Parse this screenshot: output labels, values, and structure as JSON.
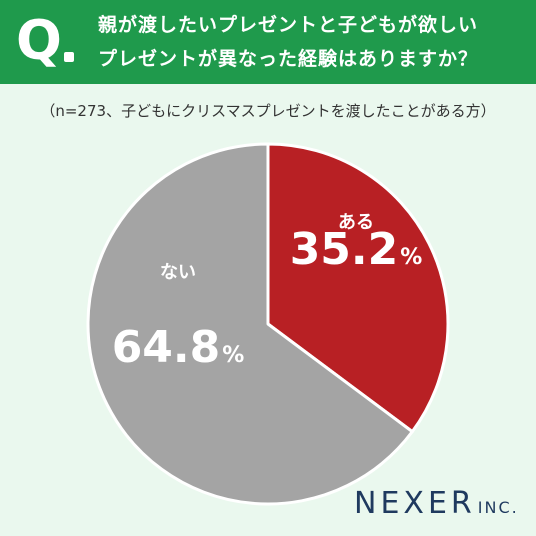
{
  "header": {
    "q_letter": "Q",
    "question_line1": "親が渡したいプレゼントと子どもが欲しい",
    "question_line2": "プレゼントが異なった経験はありますか？"
  },
  "note": "（n=273、子どもにクリスマスプレゼントを渡したことがある方）",
  "brand": {
    "name": "NEXER",
    "suffix": "INC."
  },
  "colors": {
    "header": "#1f9a4c",
    "aru": "#b82024",
    "nai": "#a4a4a4",
    "background": "#eaf8ee"
  },
  "chart_data": {
    "type": "pie",
    "slices": [
      {
        "label": "ある",
        "value": 35.2,
        "display": "35.2",
        "unit": "%",
        "color": "#b82024"
      },
      {
        "label": "ない",
        "value": 64.8,
        "display": "64.8",
        "unit": "%",
        "color": "#a4a4a4"
      }
    ]
  }
}
